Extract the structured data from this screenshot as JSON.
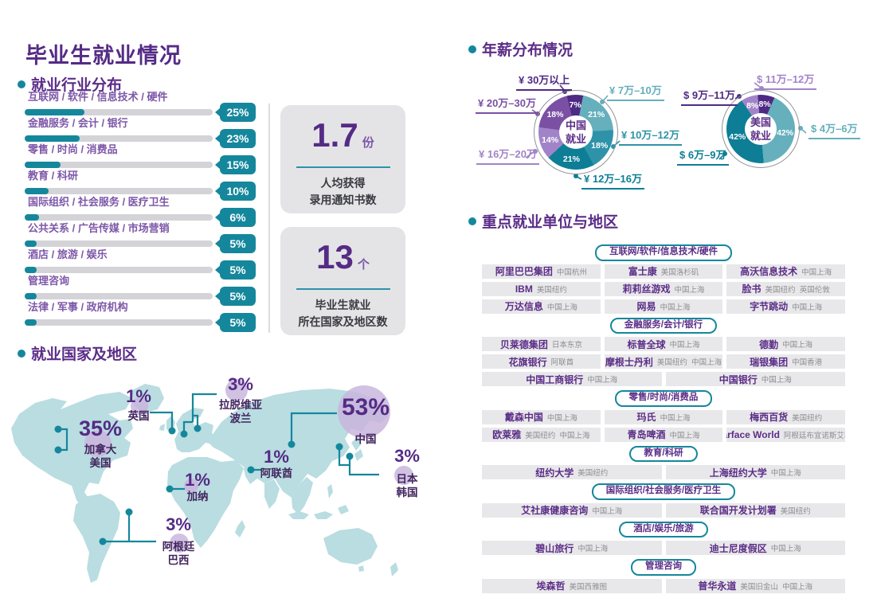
{
  "title": "毕业生就业情况",
  "industry": {
    "header": "就业行业分布"
  },
  "stats": [
    {
      "value": "1.7",
      "unit": "份",
      "desc1": "人均获得",
      "desc2": "录用通知书数"
    },
    {
      "value": "13",
      "unit": "个",
      "desc1": "毕业生就业",
      "desc2": "所在国家及地区数"
    }
  ],
  "map": {
    "header": "就业国家及地区"
  },
  "salary": {
    "header": "年薪分布情况"
  },
  "employers": {
    "header": "重点就业单位与地区",
    "groups": [
      {
        "category": "互联网/软件/信息技术/硬件",
        "rows": [
          [
            {
              "name": "阿里巴巴集团",
              "loc": "中国杭州"
            },
            {
              "name": "富士康",
              "loc": "美国洛杉矶"
            },
            {
              "name": "高沃信息技术",
              "loc": "中国上海"
            }
          ],
          [
            {
              "name": "IBM",
              "loc": "美国纽约"
            },
            {
              "name": "莉莉丝游戏",
              "loc": "中国上海"
            },
            {
              "name": "脸书",
              "loc": "美国纽约  英国伦敦"
            }
          ],
          [
            {
              "name": "万达信息",
              "loc": "中国上海"
            },
            {
              "name": "网易",
              "loc": "中国上海"
            },
            {
              "name": "字节跳动",
              "loc": "中国上海"
            }
          ]
        ]
      },
      {
        "category": "金融服务/会计/银行",
        "rows": [
          [
            {
              "name": "贝莱德集团",
              "loc": "日本东京"
            },
            {
              "name": "标普全球",
              "loc": "中国上海"
            },
            {
              "name": "德勤",
              "loc": "中国上海"
            }
          ],
          [
            {
              "name": "花旗银行",
              "loc": "阿联酋"
            },
            {
              "name": "摩根士丹利",
              "loc": "美国纽约  中国上海"
            },
            {
              "name": "瑞银集团",
              "loc": "中国香港"
            }
          ],
          [
            {
              "name": "中国工商银行",
              "loc": "中国上海"
            },
            {
              "name": "中国银行",
              "loc": "中国上海"
            }
          ]
        ]
      },
      {
        "category": "零售/时尚/消费品",
        "rows": [
          [
            {
              "name": "戴森中国",
              "loc": "中国上海"
            },
            {
              "name": "玛氏",
              "loc": "中国上海"
            },
            {
              "name": "梅西百货",
              "loc": "美国纽约"
            }
          ],
          [
            {
              "name": "欧莱雅",
              "loc": "美国纽约  中国上海"
            },
            {
              "name": "青岛啤酒",
              "loc": "中国上海"
            },
            {
              "name": "Starface World",
              "loc": "阿根廷布宜诺斯艾利斯"
            }
          ]
        ]
      },
      {
        "category": "教育/科研",
        "rows": [
          [
            {
              "name": "纽约大学",
              "loc": "美国纽约"
            },
            {
              "name": "上海纽约大学",
              "loc": "中国上海"
            }
          ]
        ]
      },
      {
        "category": "国际组织/社会服务/医疗卫生",
        "rows": [
          [
            {
              "name": "艾社康健康咨询",
              "loc": "中国上海"
            },
            {
              "name": "联合国开发计划署",
              "loc": "美国纽约"
            }
          ]
        ]
      },
      {
        "category": "酒店/娱乐/旅游",
        "rows": [
          [
            {
              "name": "碧山旅行",
              "loc": "中国上海"
            },
            {
              "name": "迪士尼度假区",
              "loc": "中国上海"
            }
          ]
        ]
      },
      {
        "category": "管理咨询",
        "rows": [
          [
            {
              "name": "埃森哲",
              "loloc": "",
              "loc": "美国西雅图"
            },
            {
              "name": "普华永道",
              "loc": "美国旧金山  中国上海"
            }
          ]
        ]
      }
    ]
  },
  "colors": {
    "accent_teal": "#15879c",
    "dark_purple": "#542b85",
    "land": "#b9dde1",
    "lavender_circle": "#c9b6dd"
  },
  "chart_data": [
    {
      "type": "bar",
      "title": "就业行业分布",
      "categories": [
        "互联网 / 软件 / 信息技术 / 硬件",
        "金融服务 / 会计 / 银行",
        "零售 / 时尚 / 消费品",
        "教育 / 科研",
        "国际组织 / 社会服务 / 医疗卫生",
        "公共关系 / 广告传媒 / 市场营销",
        "酒店 / 旅游 / 娱乐",
        "管理咨询",
        "法律 / 军事 / 政府机构"
      ],
      "values": [
        25,
        23,
        15,
        10,
        6,
        5,
        5,
        5,
        5
      ],
      "unit": "%",
      "bar_color": "#15879c"
    },
    {
      "type": "pie",
      "title": "年薪分布情况 - 中国就业",
      "center_label": [
        "中国",
        "就业"
      ],
      "slices": [
        {
          "label": "¥ 30万以上",
          "value": 7,
          "color": "#4e2a84"
        },
        {
          "label": "¥ 7万–10万",
          "value": 21,
          "color": "#66afbd"
        },
        {
          "label": "¥ 10万–12万",
          "value": 18,
          "color": "#2e93a8"
        },
        {
          "label": "¥ 12万–16万",
          "value": 21,
          "color": "#0d7e95"
        },
        {
          "label": "¥ 16万–20万",
          "value": 14,
          "color": "#a184c8"
        },
        {
          "label": "¥ 20万–30万",
          "value": 18,
          "color": "#7a50a5"
        }
      ]
    },
    {
      "type": "pie",
      "title": "年薪分布情况 - 美国就业",
      "center_label": [
        "美国",
        "就业"
      ],
      "slices": [
        {
          "label": "$ 11万–12万",
          "value": 8,
          "color": "#4e2a84",
          "label_color": "#a184c8"
        },
        {
          "label": "$ 4万–6万",
          "value": 42,
          "color": "#66afbd"
        },
        {
          "label": "$ 6万–9万",
          "value": 42,
          "color": "#0d7e95"
        },
        {
          "label": "$ 9万–11万",
          "value": 8,
          "color": "#a184c8",
          "label_color": "#4e2a84"
        }
      ]
    },
    {
      "type": "map",
      "title": "就业国家及地区",
      "markers": [
        {
          "pct": "35%",
          "countries": [
            "加拿大",
            "美国"
          ]
        },
        {
          "pct": "1%",
          "countries": [
            "英国"
          ]
        },
        {
          "pct": "3%",
          "countries": [
            "拉脱维亚",
            "波兰"
          ]
        },
        {
          "pct": "53%",
          "countries": [
            "中国"
          ]
        },
        {
          "pct": "3%",
          "countries": [
            "日本",
            "韩国"
          ]
        },
        {
          "pct": "1%",
          "countries": [
            "阿联酋"
          ]
        },
        {
          "pct": "1%",
          "countries": [
            "加纳"
          ]
        },
        {
          "pct": "3%",
          "countries": [
            "阿根廷",
            "巴西"
          ]
        }
      ]
    }
  ]
}
